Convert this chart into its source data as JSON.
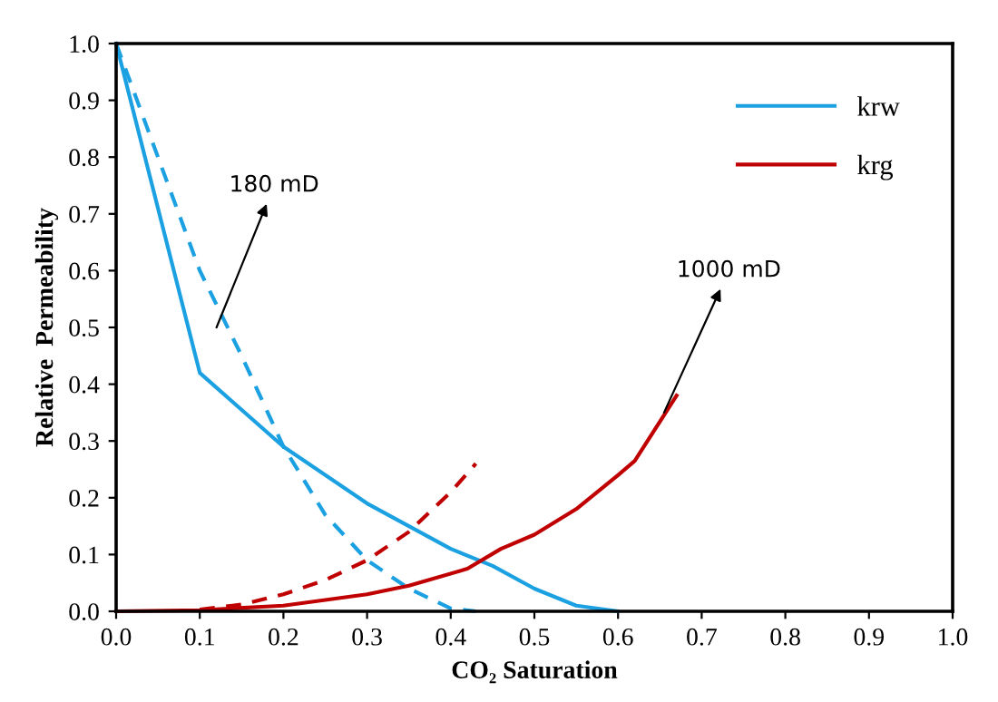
{
  "chart_data": {
    "type": "line",
    "xlabel": "CO₂ Saturation",
    "ylabel": "Relative  Permeability",
    "xlim": [
      0,
      1.0
    ],
    "ylim": [
      0,
      1.0
    ],
    "xticks": [
      {
        "value": 0,
        "label": "0.0"
      },
      0.1,
      0.2,
      0.3,
      0.4,
      0.5,
      0.6,
      0.7,
      0.8,
      0.9,
      {
        "value": 1.0,
        "label": "1.0"
      }
    ],
    "yticks": [
      {
        "value": 0,
        "label": "0.0"
      },
      0.1,
      0.2,
      0.3,
      0.4,
      0.5,
      0.6,
      0.7,
      0.8,
      0.9,
      {
        "value": 1.0,
        "label": "1.0"
      }
    ],
    "grid": false,
    "legend": "top right",
    "marker": "none",
    "series": [
      {
        "name": "krw",
        "color": "#1ba1e2",
        "line_style": "solid",
        "x": [
          0,
          0.1,
          0.2,
          0.3,
          0.35,
          0.4,
          0.45,
          0.5,
          0.55,
          0.6
        ],
        "values": [
          1.0,
          0.42,
          0.29,
          0.19,
          0.15,
          0.11,
          0.08,
          0.04,
          0.01,
          0.0
        ]
      },
      {
        "color": "#1ba1e2",
        "line_style": "dashed",
        "x": [
          0,
          0.1,
          0.15,
          0.2,
          0.25,
          0.3,
          0.35,
          0.4,
          0.43
        ],
        "values": [
          1.0,
          0.6,
          0.45,
          0.29,
          0.17,
          0.09,
          0.04,
          0.005,
          0.0
        ]
      },
      {
        "name": "krg",
        "color": "#c00000",
        "line_style": "solid",
        "x": [
          0,
          0.1,
          0.2,
          0.3,
          0.35,
          0.42,
          0.46,
          0.5,
          0.55,
          0.6,
          0.62,
          0.67
        ],
        "values": [
          0,
          0.002,
          0.01,
          0.03,
          0.045,
          0.075,
          0.11,
          0.135,
          0.18,
          0.24,
          0.265,
          0.38
        ]
      },
      {
        "color": "#c00000",
        "line_style": "dashed",
        "x": [
          0.1,
          0.15,
          0.2,
          0.25,
          0.3,
          0.35,
          0.4,
          0.43
        ],
        "values": [
          0.003,
          0.012,
          0.03,
          0.055,
          0.09,
          0.14,
          0.21,
          0.26
        ]
      }
    ],
    "annotations": [
      {
        "text": "180 mD",
        "x": 0.12,
        "y": 0.5
      },
      {
        "text": "1000 mD",
        "x": 0.655,
        "y": 0.35
      }
    ]
  }
}
